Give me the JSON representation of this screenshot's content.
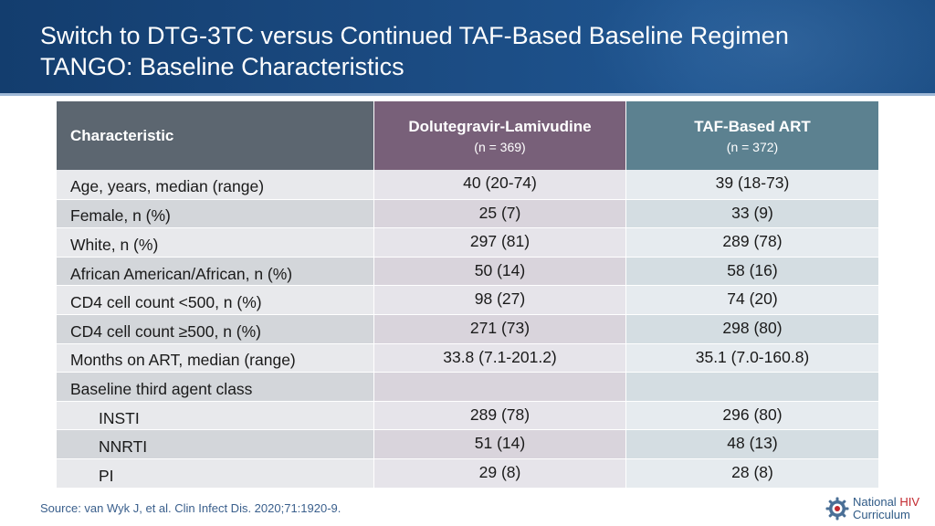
{
  "header": {
    "title_line1": "Switch to DTG-3TC versus Continued TAF-Based Baseline Regimen",
    "title_line2": "TANGO: Baseline Characteristics"
  },
  "table": {
    "col_characteristic": "Characteristic",
    "col_dtg_name": "Dolutegravir-Lamivudine",
    "col_dtg_n": "(n = 369)",
    "col_taf_name": "TAF-Based ART",
    "col_taf_n": "(n = 372)",
    "rows": [
      {
        "label": "Age, years, median (range)",
        "dtg": "40 (20-74)",
        "taf": "39 (18-73)"
      },
      {
        "label": "Female, n (%)",
        "dtg": "25 (7)",
        "taf": "33 (9)"
      },
      {
        "label": "White, n (%)",
        "dtg": "297 (81)",
        "taf": "289 (78)"
      },
      {
        "label": "African American/African, n (%)",
        "dtg": "50 (14)",
        "taf": "58 (16)"
      },
      {
        "label": "CD4 cell count <500, n (%)",
        "dtg": "98 (27)",
        "taf": "74 (20)"
      },
      {
        "label": "CD4 cell count ≥500, n (%)",
        "dtg": "271 (73)",
        "taf": "298 (80)"
      },
      {
        "label": "Months on ART, median (range)",
        "dtg": "33.8 (7.1-201.2)",
        "taf": "35.1 (7.0-160.8)"
      },
      {
        "label": "Baseline third agent class",
        "dtg": "",
        "taf": ""
      },
      {
        "label": "INSTI",
        "dtg": "289 (78)",
        "taf": "296 (80)"
      },
      {
        "label": "NNRTI",
        "dtg": "51 (14)",
        "taf": "48 (13)"
      },
      {
        "label": "PI",
        "dtg": "29 (8)",
        "taf": "28 (8)"
      }
    ]
  },
  "footer": {
    "source": "Source: van Wyk J, et al. Clin Infect Dis. 2020;71:1920-9.",
    "logo_word1": "National",
    "logo_word2": "HIV",
    "logo_word3": "Curriculum"
  },
  "colors": {
    "header_bg": "#1b4b82",
    "dtg_header": "#786079",
    "taf_header": "#5c8190",
    "char_header": "#5c6670",
    "logo_red": "#c2272d"
  }
}
